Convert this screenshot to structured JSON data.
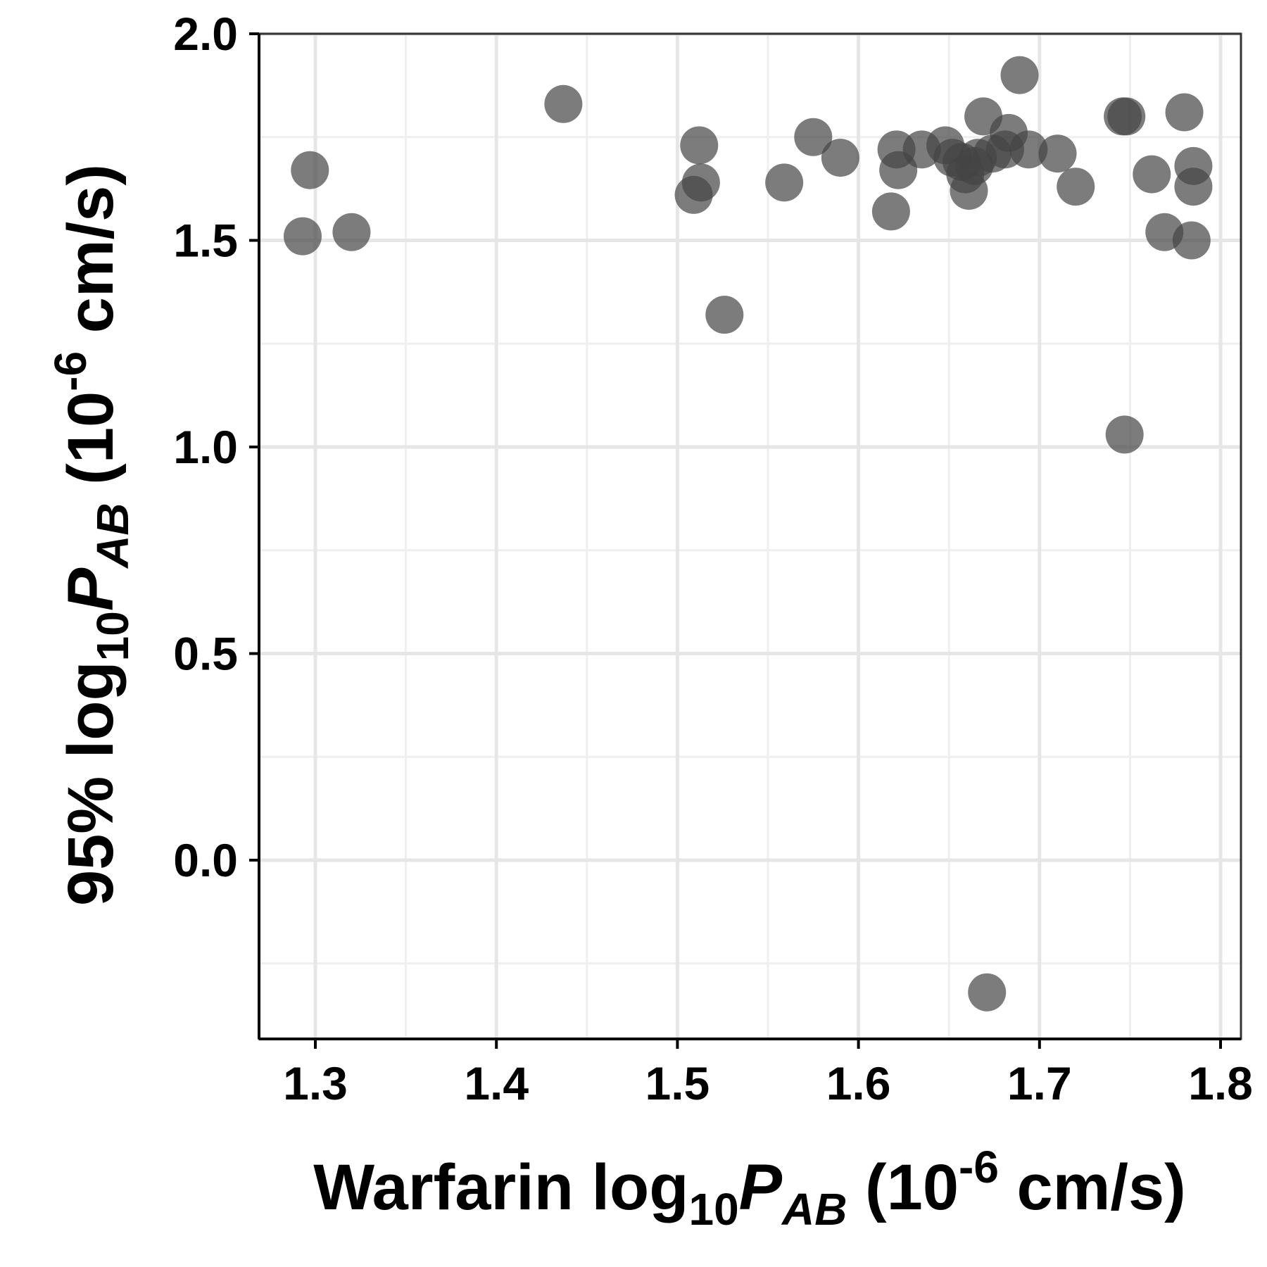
{
  "chart_data": {
    "type": "scatter",
    "xlabel": {
      "prefix": "Warfarin log",
      "sub": "10",
      "var": "P",
      "varsub": "AB",
      "unit_open": " (10",
      "unit_exp": "-6",
      "unit_close": " cm/s)"
    },
    "ylabel": {
      "prefix": "95% log",
      "sub": "10",
      "var": "P",
      "varsub": "AB",
      "unit_open": " (10",
      "unit_exp": "-6",
      "unit_close": " cm/s)"
    },
    "xlim": [
      1.27,
      1.81
    ],
    "ylim": [
      -0.37,
      2.0
    ],
    "x_ticks": [
      1.3,
      1.4,
      1.5,
      1.6,
      1.7,
      1.8
    ],
    "x_tick_labels": [
      "1.3",
      "1.4",
      "1.5",
      "1.6",
      "1.7",
      "1.8"
    ],
    "y_ticks": [
      0.0,
      0.5,
      1.0,
      1.5,
      2.0
    ],
    "y_tick_labels": [
      "0.0",
      "0.5",
      "1.0",
      "1.5",
      "2.0"
    ],
    "grid": true,
    "point_color": "#444444",
    "point_opacity": 0.7,
    "points": [
      {
        "x": 1.293,
        "y": 1.51
      },
      {
        "x": 1.297,
        "y": 1.67
      },
      {
        "x": 1.32,
        "y": 1.52
      },
      {
        "x": 1.437,
        "y": 1.83
      },
      {
        "x": 1.509,
        "y": 1.61
      },
      {
        "x": 1.512,
        "y": 1.73
      },
      {
        "x": 1.513,
        "y": 1.64
      },
      {
        "x": 1.526,
        "y": 1.32
      },
      {
        "x": 1.559,
        "y": 1.64
      },
      {
        "x": 1.575,
        "y": 1.75
      },
      {
        "x": 1.59,
        "y": 1.7
      },
      {
        "x": 1.618,
        "y": 1.57
      },
      {
        "x": 1.621,
        "y": 1.72
      },
      {
        "x": 1.622,
        "y": 1.67
      },
      {
        "x": 1.635,
        "y": 1.72
      },
      {
        "x": 1.648,
        "y": 1.73
      },
      {
        "x": 1.652,
        "y": 1.7
      },
      {
        "x": 1.657,
        "y": 1.69
      },
      {
        "x": 1.659,
        "y": 1.66
      },
      {
        "x": 1.661,
        "y": 1.62
      },
      {
        "x": 1.664,
        "y": 1.68
      },
      {
        "x": 1.666,
        "y": 1.7
      },
      {
        "x": 1.669,
        "y": 1.8
      },
      {
        "x": 1.671,
        "y": -0.32
      },
      {
        "x": 1.674,
        "y": 1.71
      },
      {
        "x": 1.681,
        "y": 1.72
      },
      {
        "x": 1.683,
        "y": 1.76
      },
      {
        "x": 1.689,
        "y": 1.9
      },
      {
        "x": 1.694,
        "y": 1.72
      },
      {
        "x": 1.71,
        "y": 1.71
      },
      {
        "x": 1.72,
        "y": 1.63
      },
      {
        "x": 1.746,
        "y": 1.8
      },
      {
        "x": 1.748,
        "y": 1.8
      },
      {
        "x": 1.747,
        "y": 1.03
      },
      {
        "x": 1.762,
        "y": 1.66
      },
      {
        "x": 1.769,
        "y": 1.52
      },
      {
        "x": 1.78,
        "y": 1.81
      },
      {
        "x": 1.785,
        "y": 1.68
      },
      {
        "x": 1.785,
        "y": 1.63
      },
      {
        "x": 1.784,
        "y": 1.5
      }
    ]
  }
}
